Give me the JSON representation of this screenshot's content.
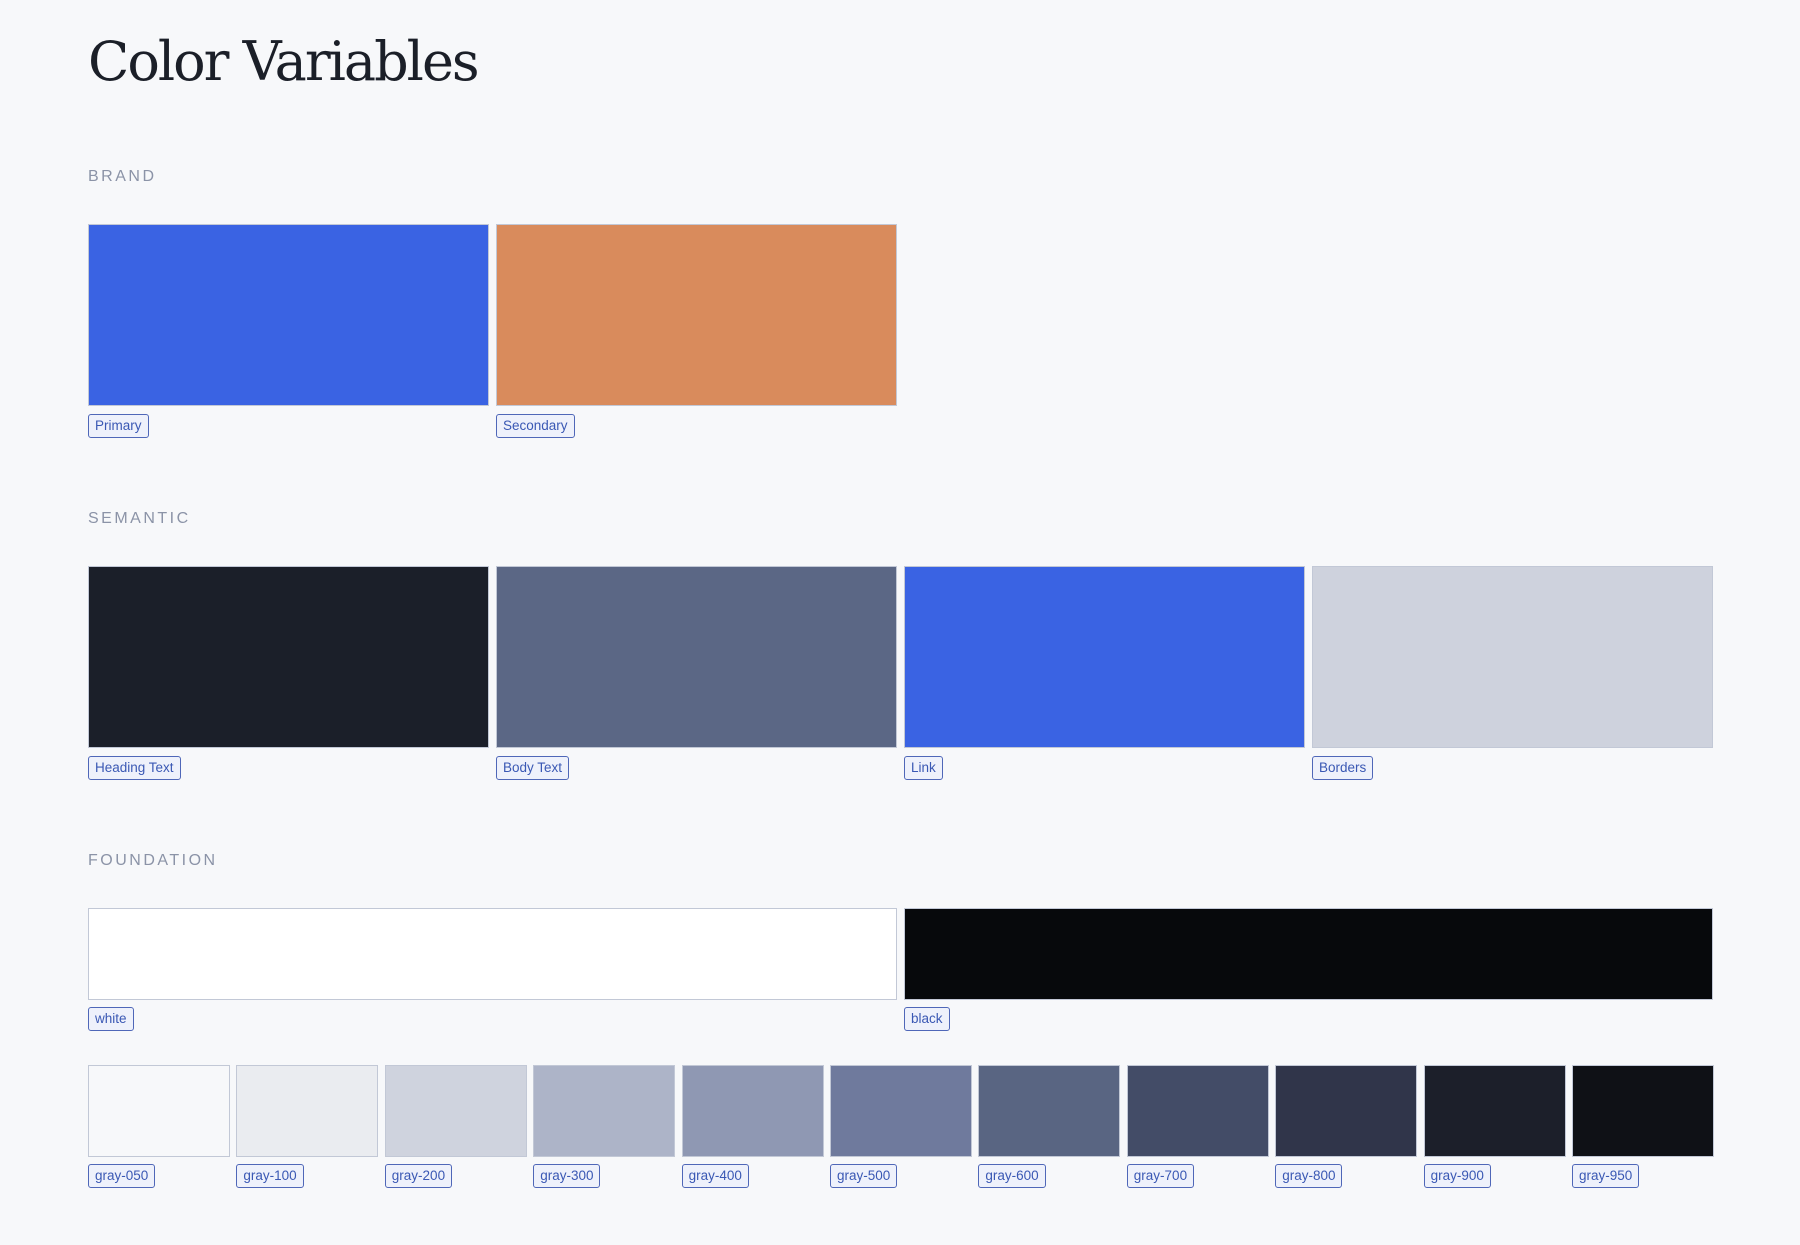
{
  "title": "Color Variables",
  "sections": {
    "brand": {
      "label": "BRAND",
      "swatches": [
        {
          "name": "Primary",
          "color": "#3a63e3"
        },
        {
          "name": "Secondary",
          "color": "#d98b5c"
        }
      ]
    },
    "semantic": {
      "label": "SEMANTIC",
      "swatches": [
        {
          "name": "Heading Text",
          "color": "#1b1f29"
        },
        {
          "name": "Body Text",
          "color": "#5b6785"
        },
        {
          "name": "Link",
          "color": "#3a63e3"
        },
        {
          "name": "Borders",
          "color": "#ced2dd"
        }
      ]
    },
    "foundation": {
      "label": "FOUNDATION",
      "base": [
        {
          "name": "white",
          "color": "#ffffff"
        },
        {
          "name": "black",
          "color": "#07090c"
        }
      ],
      "grays": [
        {
          "name": "gray-050",
          "color": "#f7f8fa"
        },
        {
          "name": "gray-100",
          "color": "#eaecf0"
        },
        {
          "name": "gray-200",
          "color": "#cfd3de"
        },
        {
          "name": "gray-300",
          "color": "#adb4c8"
        },
        {
          "name": "gray-400",
          "color": "#8f98b3"
        },
        {
          "name": "gray-500",
          "color": "#6f7a9d"
        },
        {
          "name": "gray-600",
          "color": "#596582"
        },
        {
          "name": "gray-700",
          "color": "#434c67"
        },
        {
          "name": "gray-800",
          "color": "#30354a"
        },
        {
          "name": "gray-900",
          "color": "#1c1f2a"
        },
        {
          "name": "gray-950",
          "color": "#0f1116"
        }
      ]
    }
  }
}
